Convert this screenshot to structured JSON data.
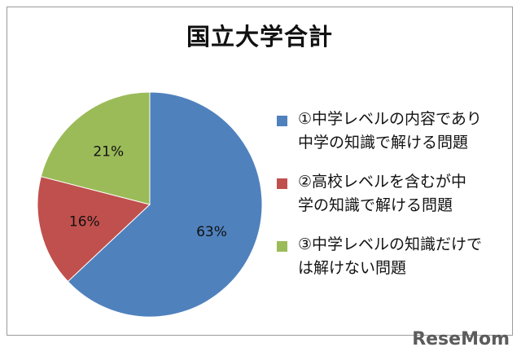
{
  "chart_data": {
    "type": "pie",
    "title": "国立大学合計",
    "slices": [
      {
        "label": "①中学レベルの内容であり中学の知識で解ける問題",
        "legend_lines": [
          "①中学レベルの内容であり",
          "中学の知識で解ける問題"
        ],
        "value": 63,
        "value_label": "63%",
        "color": "#4f81bd"
      },
      {
        "label": "②高校レベルを含むが中学の知識で解ける問題",
        "legend_lines": [
          "②高校レベルを含むが中",
          "学の知識で解ける問題"
        ],
        "value": 16,
        "value_label": "16%",
        "color": "#c0504d"
      },
      {
        "label": "③中学レベルの知識だけでは解けない問題",
        "legend_lines": [
          "③中学レベルの知識だけで",
          "は解けない問題"
        ],
        "value": 21,
        "value_label": "21%",
        "color": "#9bbb59"
      }
    ],
    "legend_position": "right"
  },
  "watermark": "ReseMom"
}
